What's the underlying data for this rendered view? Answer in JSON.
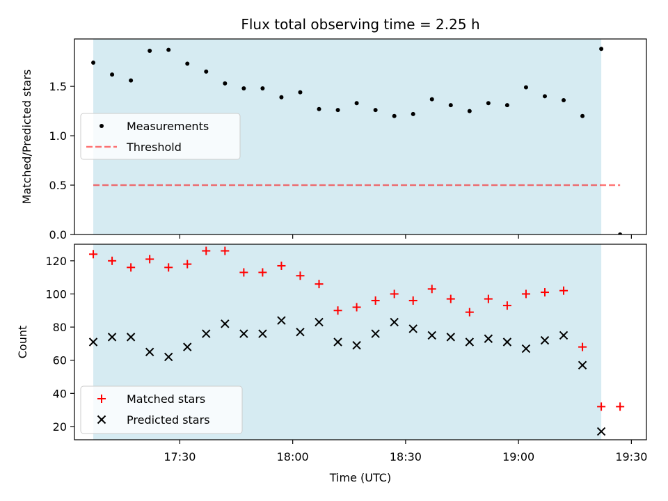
{
  "figure": {
    "title": "Flux total observing time = 2.25 h",
    "xlabel": "Time (UTC)"
  },
  "colors": {
    "observing_span": "#add8e6",
    "threshold": "#ff0000",
    "matched": "#ff0000",
    "predicted": "#000000",
    "measurements": "#000000"
  },
  "chart_data": [
    {
      "type": "scatter",
      "ylabel": "Matched/Predicted stars",
      "ylim": [
        0,
        1.98
      ],
      "yticks": [
        0.0,
        0.5,
        1.0,
        1.5
      ],
      "xlim": [
        "17:02",
        "19:34"
      ],
      "legend_placement": "center-left",
      "shaded_span": {
        "x": [
          "17:07",
          "19:22"
        ]
      },
      "series": [
        {
          "name": "Measurements",
          "marker": "dot",
          "x": [
            "17:07",
            "17:12",
            "17:17",
            "17:22",
            "17:27",
            "17:32",
            "17:37",
            "17:42",
            "17:47",
            "17:52",
            "17:57",
            "18:02",
            "18:07",
            "18:12",
            "18:17",
            "18:22",
            "18:27",
            "18:32",
            "18:37",
            "18:42",
            "18:47",
            "18:52",
            "18:57",
            "19:02",
            "19:07",
            "19:12",
            "19:17",
            "19:22",
            "19:27"
          ],
          "y": [
            1.74,
            1.62,
            1.56,
            1.86,
            1.87,
            1.73,
            1.65,
            1.53,
            1.48,
            1.48,
            1.39,
            1.44,
            1.27,
            1.26,
            1.33,
            1.26,
            1.2,
            1.22,
            1.37,
            1.31,
            1.25,
            1.33,
            1.31,
            1.49,
            1.4,
            1.36,
            1.2,
            1.88,
            0.0
          ]
        },
        {
          "name": "Threshold",
          "style": "dashed",
          "x": [
            "17:07",
            "19:27"
          ],
          "y": [
            0.5,
            0.5
          ]
        }
      ]
    },
    {
      "type": "scatter",
      "ylabel": "Count",
      "ylim": [
        12,
        130
      ],
      "yticks": [
        20,
        40,
        60,
        80,
        100,
        120
      ],
      "xlim": [
        "17:02",
        "19:34"
      ],
      "xticks": [
        "17:30",
        "18:00",
        "18:30",
        "19:00",
        "19:30"
      ],
      "legend_placement": "lower-left",
      "shaded_span": {
        "x": [
          "17:07",
          "19:22"
        ]
      },
      "series": [
        {
          "name": "Matched stars",
          "marker": "plus",
          "x": [
            "17:07",
            "17:12",
            "17:17",
            "17:22",
            "17:27",
            "17:32",
            "17:37",
            "17:42",
            "17:47",
            "17:52",
            "17:57",
            "18:02",
            "18:07",
            "18:12",
            "18:17",
            "18:22",
            "18:27",
            "18:32",
            "18:37",
            "18:42",
            "18:47",
            "18:52",
            "18:57",
            "19:02",
            "19:07",
            "19:12",
            "19:17",
            "19:22",
            "19:27"
          ],
          "y": [
            124,
            120,
            116,
            121,
            116,
            118,
            126,
            126,
            113,
            113,
            117,
            111,
            106,
            90,
            92,
            96,
            100,
            96,
            103,
            97,
            89,
            97,
            93,
            100,
            101,
            102,
            68,
            32,
            32
          ]
        },
        {
          "name": "Predicted stars",
          "marker": "x",
          "x": [
            "17:07",
            "17:12",
            "17:17",
            "17:22",
            "17:27",
            "17:32",
            "17:37",
            "17:42",
            "17:47",
            "17:52",
            "17:57",
            "18:02",
            "18:07",
            "18:12",
            "18:17",
            "18:22",
            "18:27",
            "18:32",
            "18:37",
            "18:42",
            "18:47",
            "18:52",
            "18:57",
            "19:02",
            "19:07",
            "19:12",
            "19:17",
            "19:22"
          ],
          "y": [
            71,
            74,
            74,
            65,
            62,
            68,
            76,
            82,
            76,
            76,
            84,
            77,
            83,
            71,
            69,
            76,
            83,
            79,
            75,
            74,
            71,
            73,
            71,
            67,
            72,
            75,
            57,
            17
          ]
        }
      ]
    }
  ]
}
